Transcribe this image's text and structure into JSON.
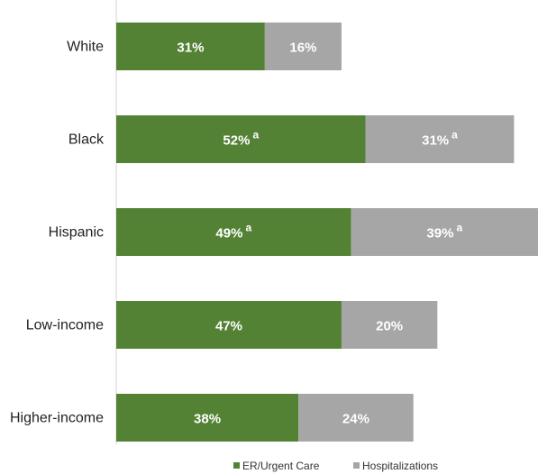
{
  "chart_data": {
    "type": "bar",
    "orientation": "horizontal",
    "stacked": true,
    "categories": [
      "White",
      "Black",
      "Hispanic",
      "Low-income",
      "Higher-income"
    ],
    "series": [
      {
        "name": "ER/Urgent Care",
        "color": "#548235",
        "values": [
          31,
          52,
          49,
          47,
          38
        ],
        "labels": [
          "31%",
          "52%",
          "49%",
          "47%",
          "38%"
        ],
        "superscripts": [
          "",
          "a",
          "a",
          "",
          ""
        ]
      },
      {
        "name": "Hospitalizations",
        "color": "#a6a6a6",
        "values": [
          16,
          31,
          39,
          20,
          24
        ],
        "labels": [
          "16%",
          "31%",
          "39%",
          "20%",
          "24%"
        ],
        "superscripts": [
          "",
          "a",
          "a",
          "",
          ""
        ]
      }
    ],
    "title": "",
    "xlabel": "",
    "ylabel": "",
    "xlim": [
      0,
      88
    ],
    "grid": false,
    "legend_position": "bottom"
  }
}
